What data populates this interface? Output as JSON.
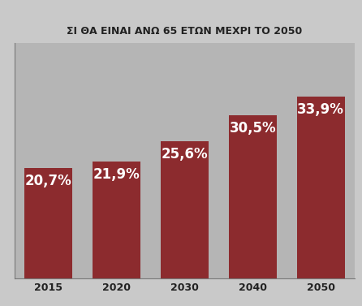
{
  "chart_data": {
    "type": "bar",
    "title": "ΣΙ ΘΑ ΕΙΝΑΙ ΑΝΩ 65 ΕΤΩΝ ΜΕΧΡΙ ΤΟ 2050",
    "categories": [
      "2015",
      "2020",
      "2030",
      "2040",
      "2050"
    ],
    "values": [
      20.7,
      21.9,
      25.6,
      30.5,
      33.9
    ],
    "value_labels": [
      "20,7%",
      "21,9%",
      "25,6%",
      "30,5%",
      "33,9%"
    ],
    "color": "#8c2b2e",
    "ylim": [
      0,
      44
    ],
    "yticks": [],
    "data_labels": true,
    "tick_labels": "x",
    "grid": false
  }
}
